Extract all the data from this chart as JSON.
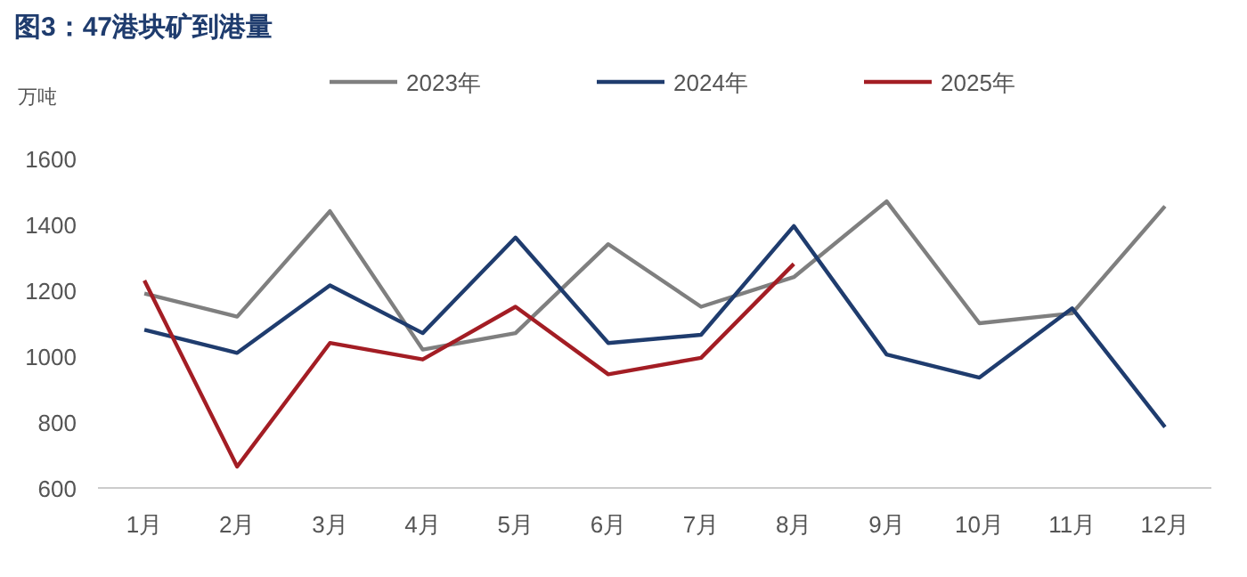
{
  "chart_data": {
    "type": "line",
    "title": "图3：47港块矿到港量",
    "ylabel": "万吨",
    "categories": [
      "1月",
      "2月",
      "3月",
      "4月",
      "5月",
      "6月",
      "7月",
      "8月",
      "9月",
      "10月",
      "11月",
      "12月"
    ],
    "series": [
      {
        "name": "2023年",
        "color": "#7f7f7f",
        "values": [
          1190,
          1120,
          1440,
          1020,
          1070,
          1340,
          1150,
          1240,
          1470,
          1100,
          1130,
          1455
        ]
      },
      {
        "name": "2024年",
        "color": "#1f3c6e",
        "values": [
          1080,
          1010,
          1215,
          1070,
          1360,
          1040,
          1065,
          1395,
          1005,
          935,
          1145,
          785
        ]
      },
      {
        "name": "2025年",
        "color": "#a31d24",
        "values": [
          1230,
          665,
          1040,
          990,
          1150,
          945,
          995,
          1280,
          null,
          null,
          null,
          null
        ]
      }
    ],
    "ylim": [
      600,
      1600
    ],
    "yticks": [
      600,
      800,
      1000,
      1200,
      1400,
      1600
    ],
    "grid": false,
    "legend": "top",
    "marker": "none",
    "line_style": "solid"
  }
}
